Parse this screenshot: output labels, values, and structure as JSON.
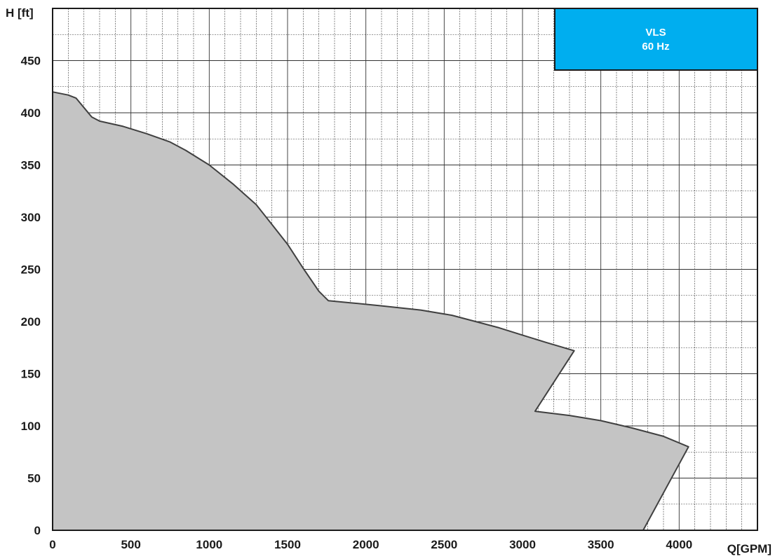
{
  "chart_data": {
    "type": "area",
    "title": "",
    "xlabel": "Q[GPM]",
    "ylabel": "H [ft]",
    "xlim": [
      0,
      4500
    ],
    "ylim": [
      0,
      500
    ],
    "x_ticks": [
      0,
      500,
      1000,
      1500,
      2000,
      2500,
      3000,
      3500,
      4000
    ],
    "y_ticks": [
      0,
      50,
      100,
      150,
      200,
      250,
      300,
      350,
      400,
      450
    ],
    "x_minor_step": 100,
    "y_minor_step": 25,
    "grid": true,
    "legend": {
      "position": "top-right",
      "lines": [
        "VLS",
        "60 Hz"
      ],
      "color": "#00aeef"
    },
    "series": [
      {
        "fill_color": "#c4c4c4",
        "line_color": "#404040",
        "points": [
          [
            0,
            420
          ],
          [
            100,
            417
          ],
          [
            150,
            414
          ],
          [
            250,
            396
          ],
          [
            300,
            392
          ],
          [
            450,
            387
          ],
          [
            600,
            380
          ],
          [
            750,
            372
          ],
          [
            850,
            364
          ],
          [
            1000,
            350
          ],
          [
            1150,
            332
          ],
          [
            1300,
            312
          ],
          [
            1400,
            293
          ],
          [
            1500,
            274
          ],
          [
            1600,
            251
          ],
          [
            1700,
            229
          ],
          [
            1760,
            220
          ],
          [
            1900,
            218
          ],
          [
            2100,
            215
          ],
          [
            2350,
            211
          ],
          [
            2550,
            206
          ],
          [
            2700,
            200
          ],
          [
            2850,
            194
          ],
          [
            3000,
            187
          ],
          [
            3150,
            180
          ],
          [
            3330,
            172
          ],
          [
            3080,
            114
          ],
          [
            3300,
            110
          ],
          [
            3500,
            105
          ],
          [
            3700,
            98
          ],
          [
            3900,
            90
          ],
          [
            4060,
            80
          ],
          [
            3770,
            0
          ]
        ]
      }
    ]
  }
}
